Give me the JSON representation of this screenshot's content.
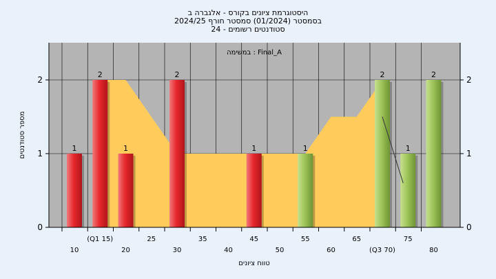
{
  "chart_data": {
    "type": "bar",
    "title": [
      "היסטוגרמת ציונים בקורס - אלגברה ב",
      "בסמסטר  (01/2024)  סמסטר חורף 2024/25",
      "סטודנטים רשומים - 24"
    ],
    "annotation": "במשימה : Final_A",
    "xlabel": "טווח ציונים",
    "ylabel": "מספר סטודנטים",
    "ylim": [
      0,
      2.5
    ],
    "yticks": [
      0,
      1,
      2
    ],
    "grid": true,
    "x_ticks": [
      {
        "x": 10,
        "label": "10"
      },
      {
        "x": 15,
        "label": "(Q1 15)"
      },
      {
        "x": 20,
        "label": "20"
      },
      {
        "x": 25,
        "label": "25"
      },
      {
        "x": 30,
        "label": "30"
      },
      {
        "x": 35,
        "label": "35"
      },
      {
        "x": 40,
        "label": "40"
      },
      {
        "x": 45,
        "label": "45"
      },
      {
        "x": 50,
        "label": "50"
      },
      {
        "x": 55,
        "label": "55"
      },
      {
        "x": 60,
        "label": "60"
      },
      {
        "x": 65,
        "label": "65"
      },
      {
        "x": 70,
        "label": "(Q3 70)"
      },
      {
        "x": 75,
        "label": "75"
      },
      {
        "x": 80,
        "label": "80"
      }
    ],
    "bars": [
      {
        "x": 10,
        "value": 1,
        "label": "1",
        "group": "red"
      },
      {
        "x": 15,
        "value": 2,
        "label": "2",
        "group": "red"
      },
      {
        "x": 20,
        "value": 1,
        "label": "1",
        "group": "red"
      },
      {
        "x": 30,
        "value": 2,
        "label": "2",
        "group": "red"
      },
      {
        "x": 45,
        "value": 1,
        "label": "1",
        "group": "red"
      },
      {
        "x": 55,
        "value": 1,
        "label": "1",
        "group": "green"
      },
      {
        "x": 70,
        "value": 2,
        "label": "2",
        "group": "green"
      },
      {
        "x": 75,
        "value": 1,
        "label": "1",
        "group": "green"
      },
      {
        "x": 80,
        "value": 2,
        "label": "2",
        "group": "green"
      }
    ],
    "area": {
      "x": [
        15,
        20,
        25,
        30,
        35,
        40,
        45,
        50,
        55,
        60,
        65,
        70
      ],
      "y": [
        2,
        2,
        1.5,
        1,
        1,
        1,
        1,
        1,
        1,
        1.5,
        1.5,
        2
      ]
    },
    "colors": {
      "plot_bg": "#b4b4b4",
      "area": "#ffcc5c",
      "red": "#e8282d",
      "green": "#9ec45a",
      "grid": "#000000"
    }
  }
}
